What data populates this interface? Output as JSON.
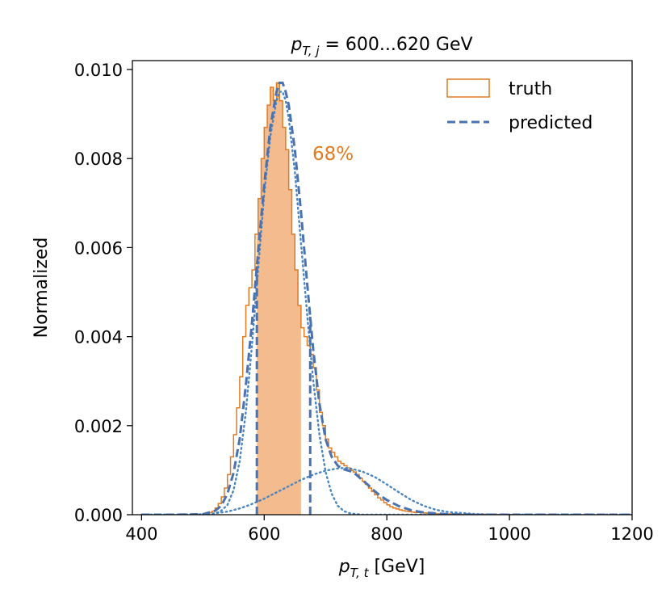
{
  "chart_data": {
    "type": "histogram+line",
    "title": {
      "prefix": "p",
      "sub": "T, j",
      "rest": " = 600...620 GeV"
    },
    "xlabel": {
      "prefix": "p",
      "sub": "T, t",
      "rest": " [GeV]"
    },
    "ylabel": "Normalized",
    "xlim": [
      385,
      1200
    ],
    "ylim": [
      0,
      0.0102
    ],
    "xticks": [
      "400",
      "600",
      "800",
      "1000",
      "1200"
    ],
    "xtick_values": [
      400,
      600,
      800,
      1000,
      1200
    ],
    "yticks": [
      "0.000",
      "0.002",
      "0.004",
      "0.006",
      "0.008",
      "0.010"
    ],
    "ytick_values": [
      0,
      0.002,
      0.004,
      0.006,
      0.008,
      0.01
    ],
    "grid": false,
    "legend_position": "top-right",
    "annotation": "68%",
    "interval_68": {
      "truth": [
        588,
        660
      ],
      "predicted": [
        588,
        675
      ]
    },
    "colors": {
      "truth": "#e07b22",
      "truth_fill": "#f3bb8e",
      "predicted": "#4a72b0",
      "components": "#4a86c0"
    },
    "series": [
      {
        "name": "truth",
        "kind": "step-histogram",
        "bin_edges": [
          505,
          510,
          515,
          520,
          525,
          530,
          535,
          540,
          545,
          550,
          555,
          560,
          565,
          570,
          575,
          580,
          585,
          590,
          595,
          600,
          605,
          610,
          615,
          620,
          625,
          630,
          635,
          640,
          645,
          650,
          655,
          660,
          665,
          670,
          675,
          680,
          685,
          690,
          695,
          700,
          705,
          710,
          715,
          720,
          725,
          730,
          735,
          740,
          745,
          750,
          755,
          760,
          765,
          770,
          775,
          780,
          785,
          790,
          795,
          800,
          805,
          810,
          815,
          820,
          825,
          830,
          835,
          840,
          845,
          850,
          855,
          860,
          865,
          870,
          875,
          880,
          885,
          890,
          895,
          900,
          905,
          910,
          915,
          920,
          925,
          930,
          935,
          940,
          945,
          950,
          955,
          960,
          965,
          970,
          975,
          980,
          985,
          990,
          995,
          1000,
          1005,
          1010,
          1015,
          1020,
          1025,
          1030
        ],
        "values": [
          2e-05,
          5e-05,
          8e-05,
          0.00015,
          0.00025,
          0.0004,
          0.0006,
          0.0009,
          0.0013,
          0.0018,
          0.0024,
          0.0031,
          0.004,
          0.0047,
          0.0051,
          0.0055,
          0.0063,
          0.0071,
          0.008,
          0.0087,
          0.0092,
          0.0096,
          0.0093,
          0.0097,
          0.0093,
          0.0087,
          0.0082,
          0.0073,
          0.0063,
          0.0055,
          0.0047,
          0.0042,
          0.004,
          0.0038,
          0.0036,
          0.0033,
          0.0028,
          0.0023,
          0.002,
          0.0017,
          0.0015,
          0.0014,
          0.0013,
          0.0012,
          0.00115,
          0.0011,
          0.00105,
          0.001,
          0.00096,
          0.0009,
          0.00082,
          0.00075,
          0.00068,
          0.0006,
          0.00052,
          0.00045,
          0.00038,
          0.00033,
          0.00027,
          0.00022,
          0.00018,
          0.00015,
          0.00013,
          0.00011,
          9e-05,
          8e-05,
          7e-05,
          6e-05,
          5e-05,
          5e-05,
          4e-05,
          4e-05,
          3e-05,
          3e-05,
          3e-05,
          2e-05,
          2e-05,
          2e-05,
          2e-05,
          2e-05,
          1e-05,
          1e-05,
          1e-05,
          1e-05,
          1e-05,
          1e-05,
          1e-05,
          1e-05,
          1e-05,
          1e-05,
          1e-05,
          5e-06,
          5e-06,
          5e-06,
          5e-06,
          5e-06,
          5e-06,
          5e-06,
          5e-06,
          5e-06,
          5e-06,
          5e-06,
          5e-06,
          3e-06,
          3e-06
        ]
      },
      {
        "name": "predicted",
        "kind": "dashed-line",
        "x": [
          400,
          450,
          500,
          520,
          530,
          540,
          550,
          560,
          570,
          580,
          590,
          600,
          610,
          620,
          625,
          630,
          635,
          640,
          650,
          660,
          670,
          680,
          690,
          700,
          710,
          720,
          730,
          740,
          750,
          760,
          770,
          780,
          790,
          800,
          820,
          840,
          860,
          880,
          900,
          950,
          1000,
          1050,
          1100,
          1200
        ],
        "y": [
          0.0,
          0.0,
          1e-05,
          9e-05,
          0.0002,
          0.00047,
          0.00094,
          0.0017,
          0.0029,
          0.0043,
          0.0059,
          0.0074,
          0.0087,
          0.0095,
          0.0097,
          0.0097,
          0.0095,
          0.0092,
          0.0082,
          0.0068,
          0.0052,
          0.0037,
          0.0025,
          0.0017,
          0.0013,
          0.0011,
          0.00102,
          0.00098,
          0.0009,
          0.00078,
          0.00066,
          0.00053,
          0.00042,
          0.00033,
          0.00019,
          0.0001,
          5e-05,
          3e-05,
          1e-05,
          0.0,
          0.0,
          0.0,
          0.0,
          0.0
        ]
      },
      {
        "name": "",
        "kind": "dotted-component",
        "x": [
          400,
          450,
          500,
          520,
          530,
          540,
          550,
          560,
          570,
          580,
          590,
          600,
          610,
          620,
          625,
          630,
          635,
          640,
          650,
          660,
          670,
          680,
          690,
          700,
          710,
          720,
          730,
          740,
          760,
          800,
          900,
          1200
        ],
        "y": [
          0.0,
          0.0,
          0.0,
          3e-05,
          9e-05,
          0.00022,
          0.00055,
          0.0012,
          0.0023,
          0.0038,
          0.0055,
          0.0072,
          0.0085,
          0.0093,
          0.0095,
          0.0095,
          0.0093,
          0.0089,
          0.0077,
          0.0061,
          0.0045,
          0.003,
          0.0018,
          0.00097,
          0.00047,
          0.0002,
          8e-05,
          3e-05,
          0.0,
          0.0,
          0.0,
          0.0
        ]
      },
      {
        "name": "",
        "kind": "dotted-component",
        "x": [
          400,
          450,
          500,
          520,
          540,
          560,
          580,
          600,
          620,
          640,
          660,
          680,
          700,
          720,
          730,
          740,
          760,
          780,
          800,
          820,
          840,
          860,
          880,
          900,
          950,
          1000,
          1100,
          1200
        ],
        "y": [
          0.0,
          0.0,
          1e-05,
          3e-05,
          7e-05,
          0.00014,
          0.00024,
          0.00036,
          0.0005,
          0.00064,
          0.00078,
          0.0009,
          0.00099,
          0.00104,
          0.00105,
          0.00104,
          0.00097,
          0.00085,
          0.00068,
          0.0005,
          0.00033,
          0.0002,
          0.00011,
          6e-05,
          1e-05,
          0.0,
          0.0,
          0.0
        ]
      }
    ]
  }
}
